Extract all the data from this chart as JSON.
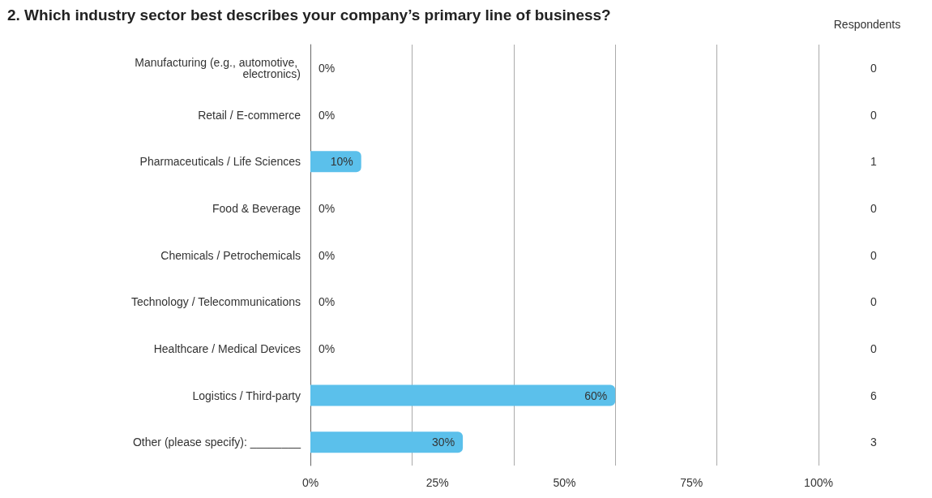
{
  "chart_data": {
    "type": "bar",
    "orientation": "horizontal",
    "title": "2. Which industry sector best describes your company’s primary line of business?",
    "categories": [
      "Manufacturing (e.g., automotive, electronics)",
      "Retail / E-commerce",
      "Pharmaceuticals / Life Sciences",
      "Food & Beverage",
      "Chemicals / Petrochemicals",
      "Technology / Telecommunications",
      "Healthcare / Medical Devices",
      "Logistics / Third-party",
      "Other (please specify): ________"
    ],
    "values": [
      0,
      0,
      10,
      0,
      0,
      0,
      0,
      60,
      30
    ],
    "value_labels": [
      "0%",
      "0%",
      "10%",
      "0%",
      "0%",
      "0%",
      "0%",
      "60%",
      "30%"
    ],
    "color": "#5bc0eb",
    "xlim": [
      0,
      100
    ],
    "xticks": [
      {
        "value": 0,
        "label": "0%"
      },
      {
        "value": 25,
        "label": "25%"
      },
      {
        "value": 50,
        "label": "50%"
      },
      {
        "value": 75,
        "label": "75%"
      },
      {
        "value": 100,
        "label": "100%"
      }
    ],
    "grid": "x",
    "annotations": [
      "Respondents",
      "0",
      "0",
      "1",
      "0",
      "0",
      "0",
      "0",
      "6",
      "3"
    ]
  }
}
